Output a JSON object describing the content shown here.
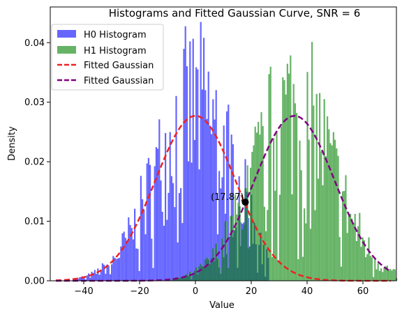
{
  "chart_data": {
    "type": "histogram",
    "title": "Histograms and Fitted Gaussian Curve, SNR = 6",
    "xlabel": "Value",
    "ylabel": "Density",
    "xlim": [
      -52,
      72
    ],
    "ylim": [
      0,
      0.046
    ],
    "x_ticks": [
      -40,
      -20,
      0,
      20,
      40,
      60
    ],
    "x_tick_labels": [
      "−40",
      "−20",
      "0",
      "20",
      "40",
      "60"
    ],
    "y_ticks": [
      0,
      0.01,
      0.02,
      0.03,
      0.04
    ],
    "y_tick_labels": [
      "0.00",
      "0.01",
      "0.02",
      "0.03",
      "0.04"
    ],
    "grid": false,
    "legend_position": "top-left",
    "series": [
      {
        "name": "H0 Histogram",
        "kind": "histogram",
        "color": "#6666ff",
        "mean": 0,
        "std": 14.4,
        "x_range": [
          -44,
          26
        ]
      },
      {
        "name": "H1 Histogram",
        "kind": "histogram",
        "color": "#66b366",
        "mean": 35.5,
        "std": 14.4,
        "x_range": [
          -8,
          72
        ]
      },
      {
        "name": "Fitted Gaussian",
        "kind": "curve",
        "color": "#ee2222",
        "style": "dashed",
        "mean": 0,
        "std": 14.4,
        "x_range": [
          -50,
          70
        ]
      },
      {
        "name": "Fitted Gaussian",
        "kind": "curve",
        "color": "#800080",
        "style": "dashed",
        "mean": 35.5,
        "std": 14.4,
        "x_range": [
          -50,
          70
        ]
      }
    ],
    "overlap_color": "#2a7366",
    "intersection": {
      "x": 17.87,
      "y": 0.0132,
      "label": "(17.87)"
    }
  }
}
